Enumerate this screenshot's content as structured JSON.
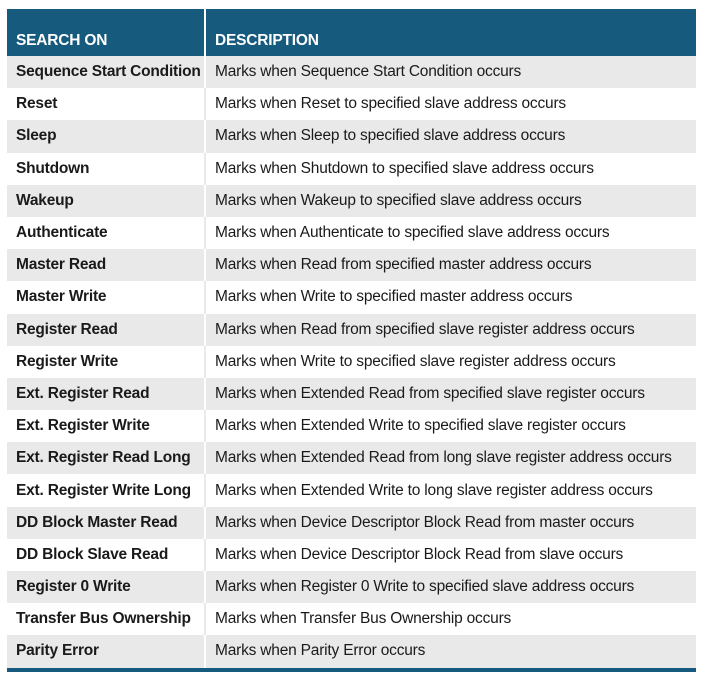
{
  "header": {
    "col1": "SEARCH ON",
    "col2": "DESCRIPTION"
  },
  "rows": [
    {
      "name": "Sequence Start Condition",
      "desc": "Marks when Sequence Start Condition occurs"
    },
    {
      "name": "Reset",
      "desc": "Marks when Reset to specified slave address occurs"
    },
    {
      "name": "Sleep",
      "desc": "Marks when Sleep to specified slave address occurs"
    },
    {
      "name": "Shutdown",
      "desc": "Marks when Shutdown to specified slave address occurs"
    },
    {
      "name": "Wakeup",
      "desc": "Marks when Wakeup to specified slave address occurs"
    },
    {
      "name": "Authenticate",
      "desc": "Marks when Authenticate to specified slave address occurs"
    },
    {
      "name": "Master Read",
      "desc": "Marks when Read from specified master address occurs"
    },
    {
      "name": "Master Write",
      "desc": "Marks when Write to specified master address occurs"
    },
    {
      "name": "Register Read",
      "desc": "Marks when Read from specified slave register address occurs"
    },
    {
      "name": "Register Write",
      "desc": "Marks when Write to specified slave register address occurs"
    },
    {
      "name": "Ext. Register Read",
      "desc": "Marks when Extended Read from specified slave register occurs"
    },
    {
      "name": "Ext. Register Write",
      "desc": "Marks when Extended Write to specified slave register occurs"
    },
    {
      "name": "Ext. Register Read Long",
      "desc": "Marks when Extended Read from long slave register address occurs"
    },
    {
      "name": "Ext. Register Write Long",
      "desc": "Marks when Extended Write to long slave register address occurs"
    },
    {
      "name": "DD Block Master Read",
      "desc": "Marks when Device Descriptor Block Read from master occurs"
    },
    {
      "name": "DD Block Slave Read",
      "desc": "Marks when Device Descriptor Block Read from slave occurs"
    },
    {
      "name": "Register 0 Write",
      "desc": "Marks when Register 0 Write to specified slave address occurs"
    },
    {
      "name": "Transfer Bus Ownership",
      "desc": "Marks when Transfer Bus Ownership occurs"
    },
    {
      "name": "Parity Error",
      "desc": "Marks when Parity Error occurs"
    }
  ],
  "colors": {
    "header_bg": "#165a7e",
    "stripe_bg": "#e9e9ea"
  }
}
